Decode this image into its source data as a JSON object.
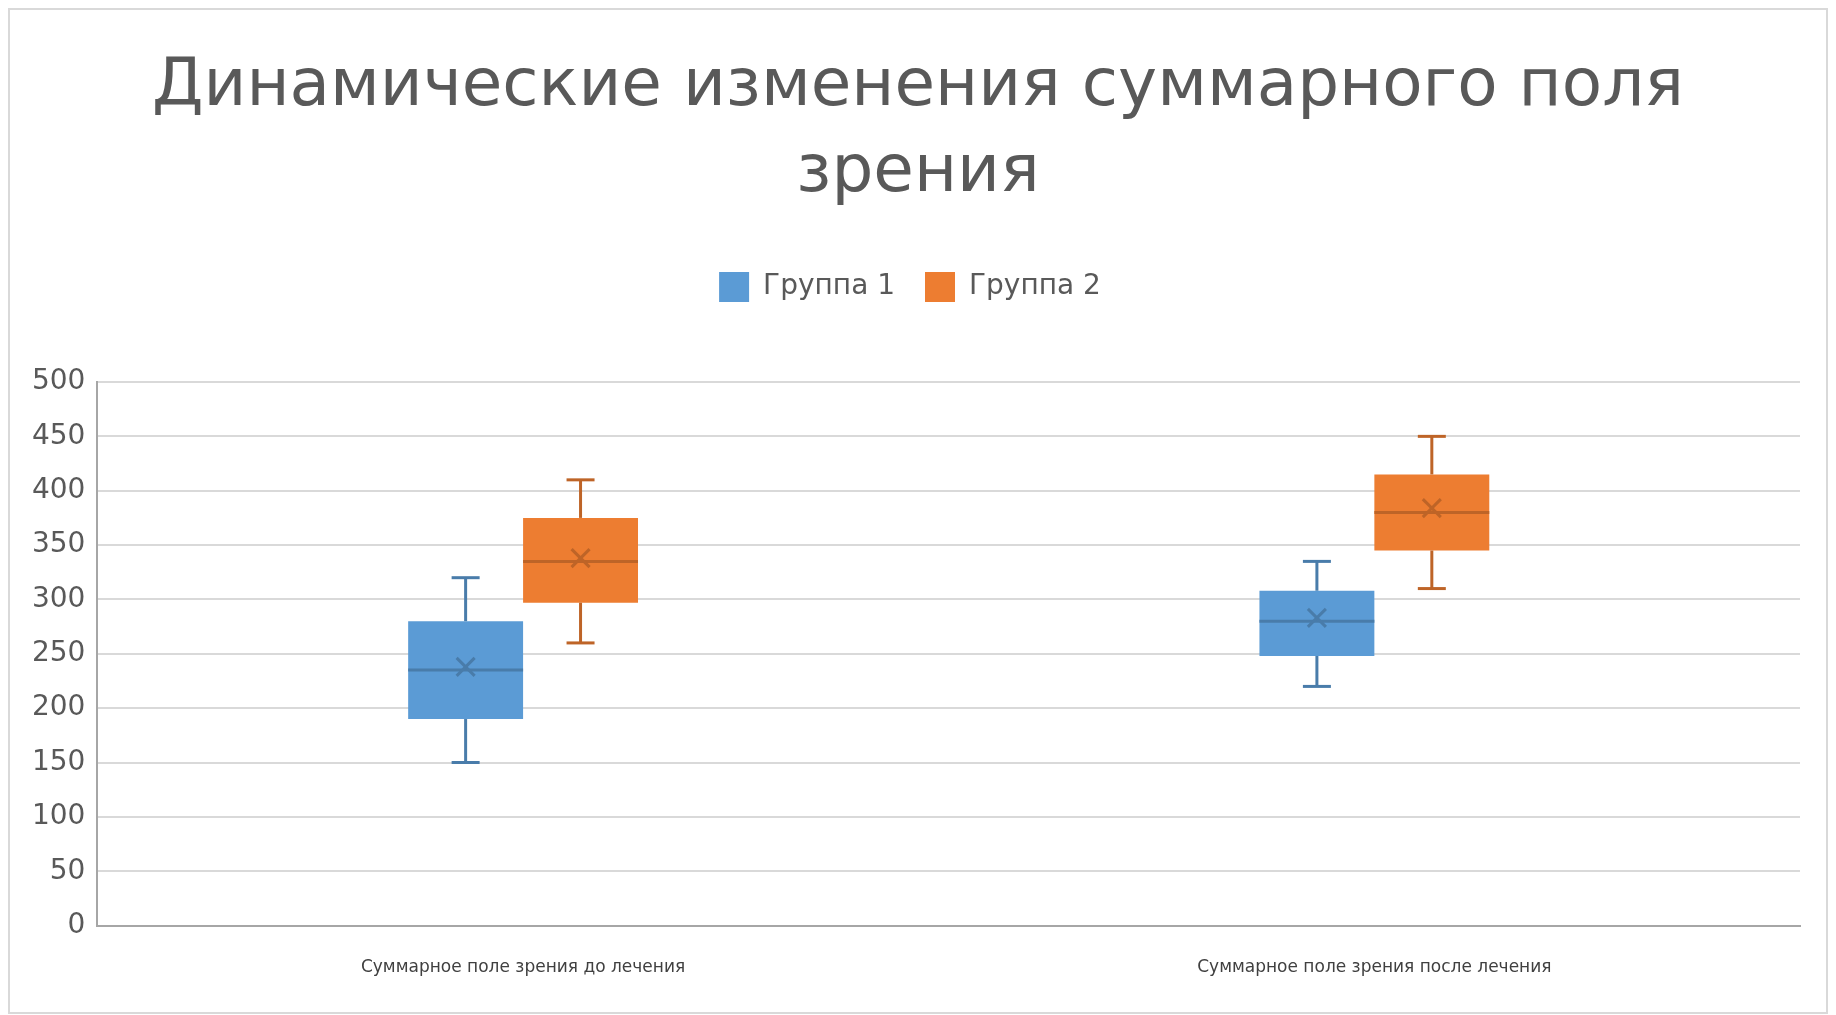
{
  "chart_data": {
    "type": "box",
    "title": "Динамические изменения суммарного поля зрения",
    "categories": [
      "Суммарное поле зрения до лечения",
      "Суммарное поле зрения после лечения"
    ],
    "series": [
      {
        "name": "Группа 1",
        "color": "#5b9bd5",
        "boxes": [
          {
            "low": 150,
            "q1": 190,
            "median": 235,
            "q3": 280,
            "high": 320,
            "mean": 238
          },
          {
            "low": 220,
            "q1": 248,
            "median": 280,
            "q3": 308,
            "high": 335,
            "mean": 283
          }
        ]
      },
      {
        "name": "Группа 2",
        "color": "#ed7d31",
        "boxes": [
          {
            "low": 260,
            "q1": 297,
            "median": 335,
            "q3": 375,
            "high": 410,
            "mean": 338
          },
          {
            "low": 310,
            "q1": 345,
            "median": 380,
            "q3": 415,
            "high": 450,
            "mean": 384
          }
        ]
      }
    ],
    "ylim": [
      0,
      500
    ],
    "yticks": [
      0,
      50,
      100,
      150,
      200,
      250,
      300,
      350,
      400,
      450,
      500
    ],
    "grid": "y",
    "legend": "top"
  }
}
